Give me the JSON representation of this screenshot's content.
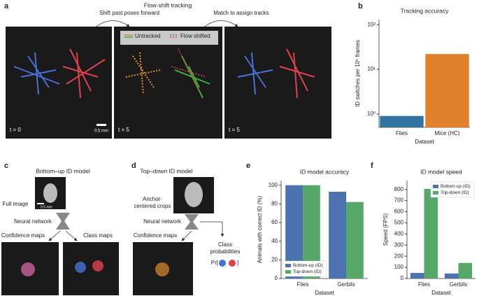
{
  "panel_labels": [
    "a",
    "b",
    "c",
    "d",
    "e",
    "f"
  ],
  "flow_shift": {
    "title": "Flow-shift tracking",
    "step1": "Shift past poses forward",
    "step2": "Match to assign tracks",
    "legend": [
      "Untracked",
      "Flow shifted"
    ],
    "frames": [
      "t = 0",
      "t = 5",
      "t = 5"
    ],
    "scale_bar": "0.5 mm"
  },
  "bottom_up": {
    "title": "Bottom–up ID model",
    "input": "Full image",
    "scale_bar": "0.5 mm",
    "network": "Neural network",
    "outputs": [
      "Confidence maps",
      "Class maps"
    ]
  },
  "top_down": {
    "title": "Top–down ID model",
    "input": [
      "Anchor-",
      "centered crops"
    ],
    "network": "Neural network",
    "output": "Confidence maps",
    "class_probabilities": [
      "Class",
      "probabilities"
    ],
    "pr_open": "Pr[",
    "pr_close": "]"
  },
  "chart_data": [
    {
      "type": "bar",
      "title": "Tracking accuracy",
      "x_label": "Dataset",
      "y_label": "ID switches per 10⁵ frames",
      "categories": [
        "Flies",
        "Mice (HC)"
      ],
      "values": [
        0.9,
        22
      ],
      "colors": [
        "#3274a1",
        "#e1812c"
      ],
      "log_scale": true,
      "ylim": [
        0.5,
        130
      ],
      "yticks": [
        {
          "value": 1,
          "label": "10⁰"
        },
        {
          "value": 10,
          "label": "10¹"
        },
        {
          "value": 100,
          "label": "10²"
        }
      ]
    },
    {
      "type": "grouped_bar",
      "title": "ID model accuracy",
      "x_label": "Dataset",
      "y_label": "Animals with correct ID (%)",
      "categories": [
        "Flies",
        "Gerbils"
      ],
      "series": [
        {
          "name": "Bottom-up (ID)",
          "color": "#4c72b0",
          "values": [
            100,
            93
          ]
        },
        {
          "name": "Top-down (ID)",
          "color": "#55a868",
          "values": [
            100,
            82
          ]
        }
      ],
      "ylim": [
        0,
        105
      ],
      "yticks": [
        0,
        20,
        40,
        60,
        80,
        100
      ],
      "legend": "lower left"
    },
    {
      "type": "grouped_bar",
      "title": "ID model speed",
      "x_label": "Dataset",
      "y_label": "Speed (FPS)",
      "categories": [
        "Flies",
        "Gerbils"
      ],
      "series": [
        {
          "name": "Bottom-up (ID)",
          "color": "#4c72b0",
          "values": [
            50,
            45
          ]
        },
        {
          "name": "Top-down (ID)",
          "color": "#55a868",
          "values": [
            805,
            140
          ]
        }
      ],
      "ylim": [
        0,
        880
      ],
      "yticks": [
        0,
        100,
        200,
        300,
        400,
        500,
        600,
        700,
        800
      ],
      "legend": "upper right"
    }
  ]
}
